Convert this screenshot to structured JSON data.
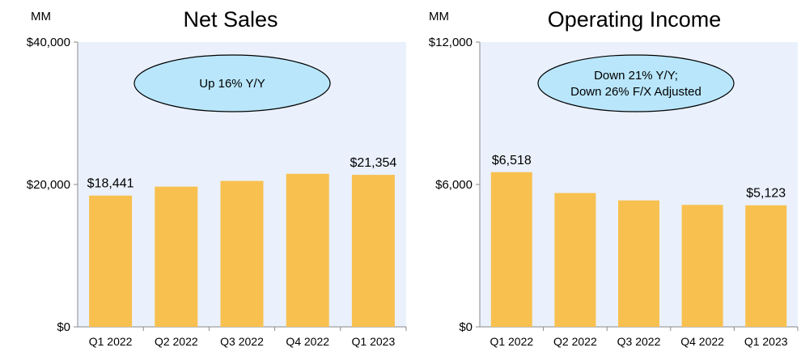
{
  "chart_data": [
    {
      "type": "bar",
      "title": "Net Sales",
      "unit_label": "MM",
      "categories": [
        "Q1 2022",
        "Q2 2022",
        "Q3 2022",
        "Q4 2022",
        "Q1 2023"
      ],
      "values": [
        18441,
        19700,
        20500,
        21500,
        21354
      ],
      "ylim": [
        0,
        40000
      ],
      "yticks": [
        0,
        20000,
        40000
      ],
      "ytick_labels": [
        "$0",
        "$20,000",
        "$40,000"
      ],
      "data_labels": [
        {
          "index": 0,
          "text": "$18,441"
        },
        {
          "index": 4,
          "text": "$21,354"
        }
      ],
      "callout": [
        "Up 16% Y/Y"
      ],
      "grid": false
    },
    {
      "type": "bar",
      "title": "Operating Income",
      "unit_label": "MM",
      "categories": [
        "Q1 2022",
        "Q2 2022",
        "Q3 2022",
        "Q4 2022",
        "Q1 2023"
      ],
      "values": [
        6518,
        5640,
        5330,
        5140,
        5123
      ],
      "ylim": [
        0,
        12000
      ],
      "yticks": [
        0,
        6000,
        12000
      ],
      "ytick_labels": [
        "$0",
        "$6,000",
        "$12,000"
      ],
      "data_labels": [
        {
          "index": 0,
          "text": "$6,518"
        },
        {
          "index": 4,
          "text": "$5,123"
        }
      ],
      "callout": [
        "Down 21% Y/Y;",
        "Down 26% F/X Adjusted"
      ],
      "grid": false
    }
  ],
  "colors": {
    "bar": "#f8c04f",
    "plot_background": "#eaf1fc",
    "callout_fill": "#b9e6fb"
  }
}
